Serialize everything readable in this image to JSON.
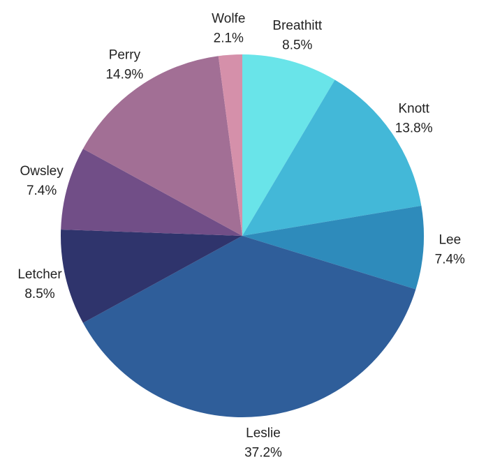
{
  "chart_data": {
    "type": "pie",
    "title": "",
    "legend": "none",
    "slices": [
      {
        "label": "Breathitt",
        "percent_label": "8.5%",
        "value": 8.5,
        "color": "#69e4e9"
      },
      {
        "label": "Knott",
        "percent_label": "13.8%",
        "value": 13.8,
        "color": "#43b8d8"
      },
      {
        "label": "Lee",
        "percent_label": "7.4%",
        "value": 7.4,
        "color": "#2e8bbb"
      },
      {
        "label": "Leslie",
        "percent_label": "37.2%",
        "value": 37.2,
        "color": "#2f5e9a"
      },
      {
        "label": "Letcher",
        "percent_label": "8.5%",
        "value": 8.5,
        "color": "#2f346c"
      },
      {
        "label": "Owsley",
        "percent_label": "7.4%",
        "value": 7.4,
        "color": "#714e87"
      },
      {
        "label": "Perry",
        "percent_label": "14.9%",
        "value": 14.9,
        "color": "#a26f95"
      },
      {
        "label": "Wolfe",
        "percent_label": "2.1%",
        "value": 2.1,
        "color": "#d590aa"
      }
    ]
  }
}
